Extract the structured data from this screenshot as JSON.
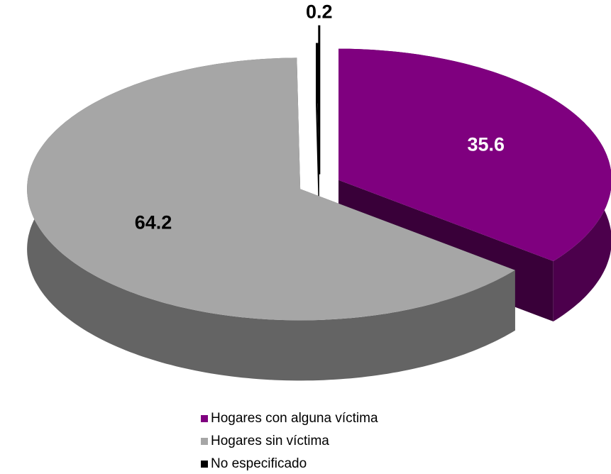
{
  "chart_data": {
    "type": "pie3d",
    "categories": [
      "Hogares con alguna víctima",
      "Hogares sin víctima",
      "No especificado"
    ],
    "values": [
      35.6,
      64.2,
      0.2
    ],
    "colors": [
      "#7f007f",
      "#a6a6a6",
      "#000000"
    ],
    "label_colors": [
      "#ffffff",
      "#000000",
      "#000000"
    ],
    "legend": "bottom"
  }
}
